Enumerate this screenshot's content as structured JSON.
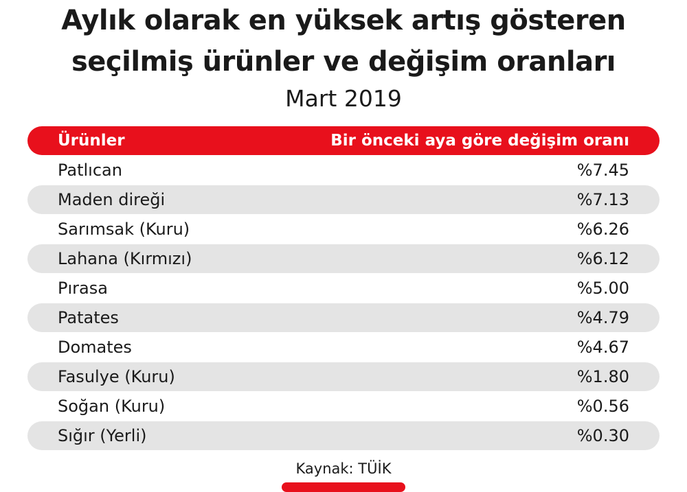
{
  "chart_data": {
    "type": "table",
    "title_lines": [
      "Aylık olarak en yüksek artış gösteren",
      "seçilmiş ürünler ve değişim oranları"
    ],
    "subtitle": "Mart 2019",
    "columns": [
      "Ürünler",
      "Bir önceki aya göre değişim oranı"
    ],
    "rows": [
      {
        "product": "Patlıcan",
        "change": "%7.45"
      },
      {
        "product": "Maden direği",
        "change": "%7.13"
      },
      {
        "product": "Sarımsak (Kuru)",
        "change": "%6.26"
      },
      {
        "product": "Lahana (Kırmızı)",
        "change": "%6.12"
      },
      {
        "product": "Pırasa",
        "change": "%5.00"
      },
      {
        "product": "Patates",
        "change": "%4.79"
      },
      {
        "product": "Domates",
        "change": "%4.67"
      },
      {
        "product": "Fasulye (Kuru)",
        "change": "%1.80"
      },
      {
        "product": "Soğan (Kuru)",
        "change": "%0.56"
      },
      {
        "product": "Sığır (Yerli)",
        "change": "%0.30"
      }
    ],
    "source": "Kaynak: TÜİK"
  },
  "colors": {
    "accent": "#e8101c",
    "row_shade": "#e4e4e4",
    "text": "#1a1a1a",
    "header_text": "#ffffff"
  }
}
